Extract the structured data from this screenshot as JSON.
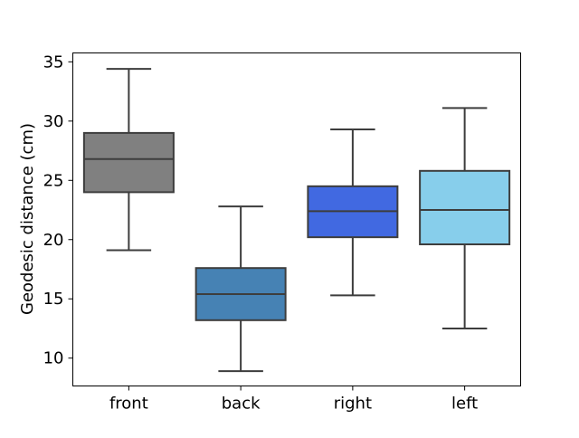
{
  "chart_data": {
    "type": "box",
    "ylabel": "Geodesic distance (cm)",
    "xlabel": "",
    "ylim": [
      7.65,
      35.75
    ],
    "yticks": [
      10,
      15,
      20,
      25,
      30,
      35
    ],
    "grid": false,
    "categories": [
      "front",
      "back",
      "right",
      "left"
    ],
    "colors": [
      "#808080",
      "#4682b4",
      "#4169e1",
      "#87ceeb"
    ],
    "boxes": [
      {
        "name": "front",
        "whisker_low": 19.1,
        "q1": 24.0,
        "median": 26.8,
        "q3": 29.0,
        "whisker_high": 34.4
      },
      {
        "name": "back",
        "whisker_low": 8.9,
        "q1": 13.2,
        "median": 15.4,
        "q3": 17.6,
        "whisker_high": 22.8
      },
      {
        "name": "right",
        "whisker_low": 15.3,
        "q1": 20.2,
        "median": 22.4,
        "q3": 24.5,
        "whisker_high": 29.3
      },
      {
        "name": "left",
        "whisker_low": 12.5,
        "q1": 19.6,
        "median": 22.5,
        "q3": 25.8,
        "whisker_high": 31.1
      }
    ]
  }
}
